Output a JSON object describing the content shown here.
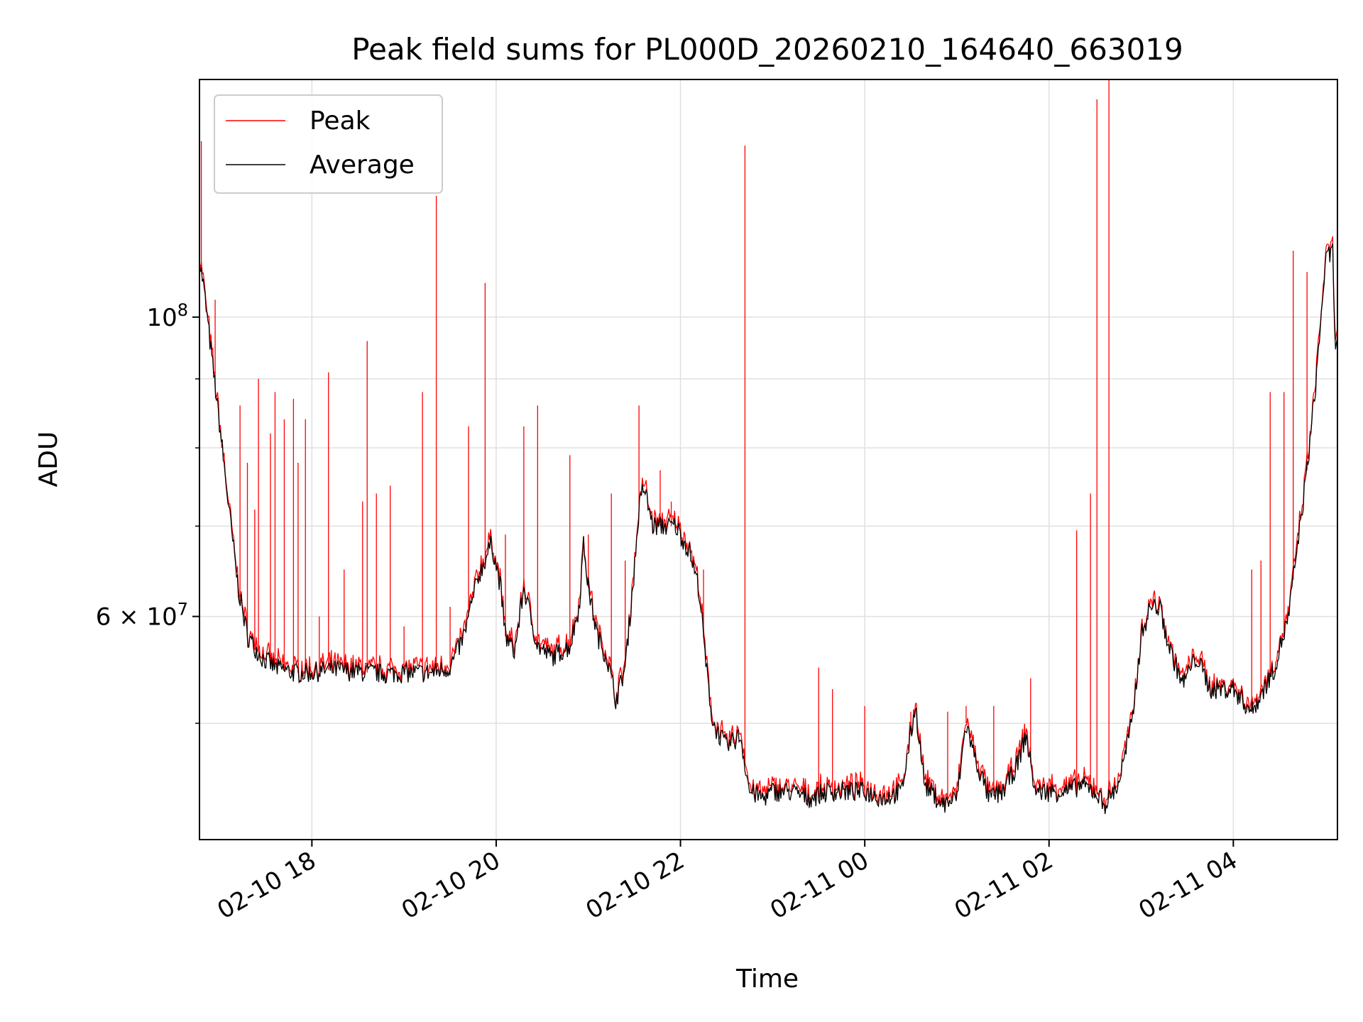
{
  "chart_data": {
    "type": "line",
    "title": "Peak field sums for PL000D_20260210_164640_663019",
    "xlabel": "Time",
    "ylabel": "ADU",
    "yscale": "log",
    "ylim": [
      41000000,
      150000000
    ],
    "x_unit": "hours since 02-10 00:00",
    "xlim": [
      16.78,
      29.13
    ],
    "grid": true,
    "legend_position": "upper-left",
    "x_ticks": [
      {
        "x": 18,
        "label": "02-10 18"
      },
      {
        "x": 20,
        "label": "02-10 20"
      },
      {
        "x": 22,
        "label": "02-10 22"
      },
      {
        "x": 24,
        "label": "02-11 00"
      },
      {
        "x": 26,
        "label": "02-11 02"
      },
      {
        "x": 28,
        "label": "02-11 04"
      }
    ],
    "y_ticks": [
      {
        "value": 100000000,
        "base": "10",
        "exponent": "8",
        "mantissa": ""
      },
      {
        "value": 60000000,
        "base": "10",
        "exponent": "7",
        "mantissa": "6"
      }
    ],
    "y_minor_gridlines": [
      50000000,
      70000000,
      80000000,
      90000000
    ],
    "series": [
      {
        "name": "Average",
        "color": "#000000",
        "baseline": [
          [
            16.78,
            110000000
          ],
          [
            16.82,
            106000000
          ],
          [
            16.9,
            95000000
          ],
          [
            17.0,
            83000000
          ],
          [
            17.1,
            72000000
          ],
          [
            17.2,
            63000000
          ],
          [
            17.3,
            58000000
          ],
          [
            17.45,
            56000000
          ],
          [
            17.6,
            55000000
          ],
          [
            17.8,
            54500000
          ],
          [
            18.0,
            54500000
          ],
          [
            18.2,
            54800000
          ],
          [
            18.5,
            54600000
          ],
          [
            18.8,
            54400000
          ],
          [
            19.0,
            54500000
          ],
          [
            19.3,
            54500000
          ],
          [
            19.5,
            55000000
          ],
          [
            19.65,
            58000000
          ],
          [
            19.8,
            64000000
          ],
          [
            19.95,
            68000000
          ],
          [
            20.05,
            63000000
          ],
          [
            20.1,
            58000000
          ],
          [
            20.2,
            56500000
          ],
          [
            20.3,
            63000000
          ],
          [
            20.45,
            57000000
          ],
          [
            20.6,
            56000000
          ],
          [
            20.8,
            57000000
          ],
          [
            20.9,
            61000000
          ],
          [
            20.95,
            68000000
          ],
          [
            21.0,
            63000000
          ],
          [
            21.1,
            58000000
          ],
          [
            21.2,
            56000000
          ],
          [
            21.3,
            52000000
          ],
          [
            21.4,
            55000000
          ],
          [
            21.5,
            65000000
          ],
          [
            21.55,
            72000000
          ],
          [
            21.6,
            75000000
          ],
          [
            21.7,
            70000000
          ],
          [
            21.8,
            70000000
          ],
          [
            21.95,
            70000000
          ],
          [
            22.1,
            67000000
          ],
          [
            22.2,
            63000000
          ],
          [
            22.28,
            55000000
          ],
          [
            22.35,
            50000000
          ],
          [
            22.5,
            48000000
          ],
          [
            22.65,
            49000000
          ],
          [
            22.75,
            44500000
          ],
          [
            22.9,
            44000000
          ],
          [
            23.0,
            44500000
          ],
          [
            23.2,
            44500000
          ],
          [
            23.4,
            44000000
          ],
          [
            23.6,
            44500000
          ],
          [
            23.8,
            44500000
          ],
          [
            24.0,
            44500000
          ],
          [
            24.2,
            44000000
          ],
          [
            24.4,
            44500000
          ],
          [
            24.55,
            51500000
          ],
          [
            24.65,
            45000000
          ],
          [
            24.85,
            43500000
          ],
          [
            25.0,
            44000000
          ],
          [
            25.1,
            50000000
          ],
          [
            25.2,
            47000000
          ],
          [
            25.35,
            44000000
          ],
          [
            25.5,
            44500000
          ],
          [
            25.65,
            46500000
          ],
          [
            25.75,
            49000000
          ],
          [
            25.85,
            44500000
          ],
          [
            26.0,
            44500000
          ],
          [
            26.2,
            44500000
          ],
          [
            26.35,
            45000000
          ],
          [
            26.5,
            44500000
          ],
          [
            26.6,
            43500000
          ],
          [
            26.75,
            45000000
          ],
          [
            26.9,
            50000000
          ],
          [
            27.0,
            58000000
          ],
          [
            27.1,
            61000000
          ],
          [
            27.2,
            61000000
          ],
          [
            27.3,
            57000000
          ],
          [
            27.45,
            53500000
          ],
          [
            27.6,
            56000000
          ],
          [
            27.75,
            53000000
          ],
          [
            27.9,
            53000000
          ],
          [
            28.0,
            53000000
          ],
          [
            28.1,
            52000000
          ],
          [
            28.2,
            51000000
          ],
          [
            28.3,
            52500000
          ],
          [
            28.45,
            55000000
          ],
          [
            28.6,
            60000000
          ],
          [
            28.7,
            68000000
          ],
          [
            28.8,
            77000000
          ],
          [
            28.9,
            90000000
          ],
          [
            29.0,
            110000000
          ],
          [
            29.08,
            112000000
          ],
          [
            29.1,
            96000000
          ],
          [
            29.13,
            97000000
          ]
        ]
      },
      {
        "name": "Peak",
        "color": "#ff0000",
        "spikes": [
          [
            16.8,
            135000000
          ],
          [
            16.95,
            103000000
          ],
          [
            17.02,
            80000000
          ],
          [
            17.22,
            86000000
          ],
          [
            17.3,
            78000000
          ],
          [
            17.38,
            72000000
          ],
          [
            17.42,
            90000000
          ],
          [
            17.55,
            82000000
          ],
          [
            17.6,
            88000000
          ],
          [
            17.7,
            84000000
          ],
          [
            17.8,
            87000000
          ],
          [
            17.85,
            78000000
          ],
          [
            17.93,
            84000000
          ],
          [
            18.08,
            60000000
          ],
          [
            18.18,
            91000000
          ],
          [
            18.35,
            65000000
          ],
          [
            18.55,
            73000000
          ],
          [
            18.6,
            96000000
          ],
          [
            18.7,
            74000000
          ],
          [
            18.85,
            75000000
          ],
          [
            19.0,
            59000000
          ],
          [
            19.2,
            88000000
          ],
          [
            19.35,
            123000000
          ],
          [
            19.5,
            61000000
          ],
          [
            19.7,
            83000000
          ],
          [
            19.88,
            106000000
          ],
          [
            20.1,
            69000000
          ],
          [
            20.3,
            83000000
          ],
          [
            20.45,
            86000000
          ],
          [
            20.8,
            79000000
          ],
          [
            21.0,
            69000000
          ],
          [
            21.25,
            74000000
          ],
          [
            21.4,
            66000000
          ],
          [
            21.55,
            86000000
          ],
          [
            21.78,
            77000000
          ],
          [
            21.9,
            73000000
          ],
          [
            22.25,
            65000000
          ],
          [
            22.7,
            134000000
          ],
          [
            23.5,
            55000000
          ],
          [
            23.65,
            53000000
          ],
          [
            24.0,
            51500000
          ],
          [
            24.5,
            51000000
          ],
          [
            24.9,
            51000000
          ],
          [
            25.1,
            51500000
          ],
          [
            25.4,
            51500000
          ],
          [
            25.8,
            54000000
          ],
          [
            26.3,
            69500000
          ],
          [
            26.45,
            74000000
          ],
          [
            26.52,
            145000000
          ],
          [
            26.65,
            150000000
          ],
          [
            28.2,
            65000000
          ],
          [
            28.3,
            66000000
          ],
          [
            28.4,
            88000000
          ],
          [
            28.55,
            88000000
          ],
          [
            28.65,
            112000000
          ],
          [
            28.8,
            108000000
          ]
        ]
      }
    ]
  },
  "legend": {
    "items": [
      {
        "name": "Peak",
        "color": "#ff0000"
      },
      {
        "name": "Average",
        "color": "#000000"
      }
    ]
  }
}
